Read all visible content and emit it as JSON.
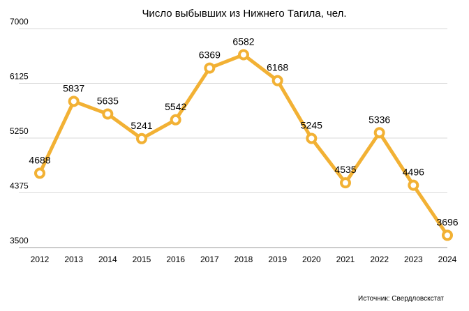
{
  "chart_data": {
    "type": "line",
    "title": "Число выбывших из Нижнего Тагила, чел.",
    "xlabel": "",
    "ylabel": "",
    "categories": [
      "2012",
      "2013",
      "2014",
      "2015",
      "2016",
      "2017",
      "2018",
      "2019",
      "2020",
      "2021",
      "2022",
      "2023",
      "2024"
    ],
    "series": [
      {
        "name": "Число выбывших",
        "values": [
          4688,
          5837,
          5635,
          5241,
          5542,
          6369,
          6582,
          6168,
          5245,
          4535,
          5336,
          4496,
          3696
        ]
      }
    ],
    "ylim": [
      3500,
      7000
    ],
    "yticks": [
      3500,
      4375,
      5250,
      6125,
      7000
    ],
    "grid": true,
    "legend": "none",
    "line_color": "#f2b134",
    "source_note": "Источник: Свердловскстат"
  }
}
